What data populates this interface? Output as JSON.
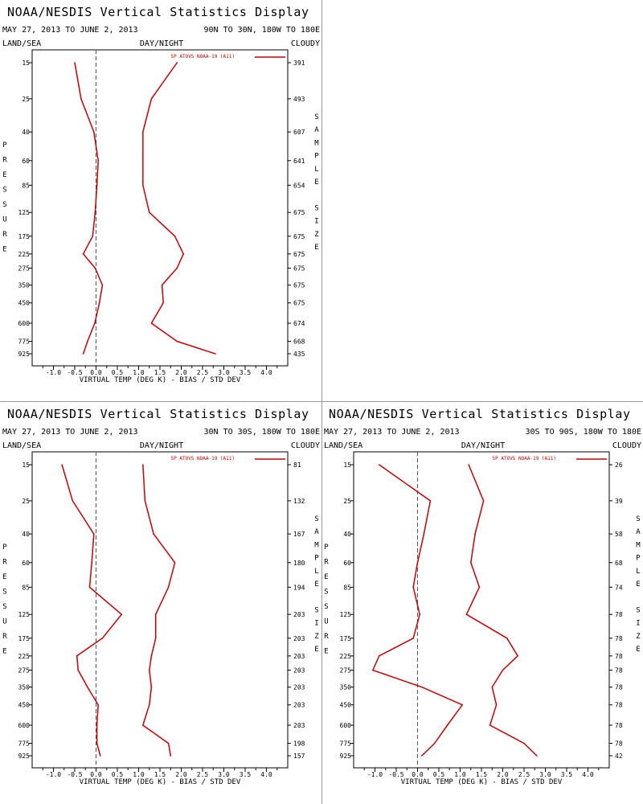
{
  "panel_title": "NOAA/NESDIS Vertical Statistics Display",
  "date_range": "MAY 27, 2013 TO JUNE 2, 2013",
  "label_left": "LAND/SEA",
  "label_center": "DAY/NIGHT",
  "label_right": "CLOUDY",
  "y_title_letters": [
    "P",
    "R",
    "E",
    "S",
    "S",
    "U",
    "R",
    "E"
  ],
  "right_title_letters": [
    "S",
    "A",
    "M",
    "P",
    "L",
    "E",
    "",
    "S",
    "I",
    "Z",
    "E"
  ],
  "colors": {
    "series": "#cc0000",
    "axis": "#000000",
    "zero_line": "#555555",
    "divider": "#999999"
  },
  "chart_data": [
    {
      "type": "line",
      "region": "90N TO 30N, 180W TO 180E",
      "legend": "SP ATOVS NOAA-19 (A11)",
      "xlabel": "VIRTUAL TEMP (DEG K) - BIAS / STD DEV",
      "xlim": [
        -1.5,
        4.5
      ],
      "xticks": [
        "-1.0",
        "-0.5",
        "0.0",
        "0.5",
        "1.0",
        "1.5",
        "2.0",
        "2.5",
        "3.0",
        "3.5",
        "4.0"
      ],
      "y_levels": [
        15,
        25,
        40,
        60,
        85,
        125,
        175,
        225,
        275,
        350,
        450,
        600,
        775,
        925
      ],
      "sample_size": [
        391,
        493,
        607,
        641,
        654,
        675,
        675,
        675,
        675,
        675,
        675,
        674,
        668,
        435
      ],
      "series": [
        {
          "stat": "bias",
          "values": [
            -0.5,
            -0.35,
            -0.05,
            0.05,
            0.02,
            -0.02,
            -0.08,
            -0.3,
            -0.02,
            0.15,
            0.08,
            -0.03,
            -0.2,
            -0.3
          ]
        },
        {
          "stat": "std_dev",
          "values": [
            1.9,
            1.3,
            1.1,
            1.1,
            1.1,
            1.25,
            1.85,
            2.05,
            1.9,
            1.55,
            1.58,
            1.3,
            1.9,
            2.8
          ]
        }
      ]
    },
    {
      "type": "line",
      "region": "30N TO 30S, 180W TO 180E",
      "legend": "SP ATOVS NOAA-19 (A11)",
      "xlabel": "VIRTUAL TEMP (DEG K) - BIAS / STD DEV",
      "xlim": [
        -1.5,
        4.5
      ],
      "xticks": [
        "-1.0",
        "-0.5",
        "0.0",
        "0.5",
        "1.0",
        "1.5",
        "2.0",
        "2.5",
        "3.0",
        "3.5",
        "4.0"
      ],
      "y_levels": [
        15,
        25,
        40,
        60,
        85,
        125,
        175,
        225,
        275,
        350,
        450,
        600,
        775,
        925
      ],
      "sample_size": [
        81,
        132,
        167,
        180,
        194,
        203,
        203,
        203,
        203,
        203,
        203,
        203,
        198,
        157
      ],
      "series": [
        {
          "stat": "bias",
          "values": [
            -0.8,
            -0.55,
            -0.05,
            -0.1,
            -0.15,
            0.6,
            0.15,
            -0.45,
            -0.42,
            -0.2,
            0.05,
            0.02,
            0.02,
            0.1
          ]
        },
        {
          "stat": "std_dev",
          "values": [
            1.1,
            1.15,
            1.35,
            1.85,
            1.7,
            1.4,
            1.4,
            1.3,
            1.25,
            1.3,
            1.25,
            1.1,
            1.7,
            1.75
          ]
        }
      ]
    },
    {
      "type": "line",
      "region": "30S TO 90S, 180W TO 180E",
      "legend": "SP ATOVS NOAA-19 (A11)",
      "xlabel": "VIRTUAL TEMP (DEG K) - BIAS / STD DEV",
      "xlim": [
        -1.5,
        4.5
      ],
      "xticks": [
        "-1.0",
        "-0.5",
        "0.0",
        "0.5",
        "1.0",
        "1.5",
        "2.0",
        "2.5",
        "3.0",
        "3.5",
        "4.0"
      ],
      "y_levels": [
        15,
        25,
        40,
        60,
        85,
        125,
        175,
        225,
        275,
        350,
        450,
        600,
        775,
        925
      ],
      "sample_size": [
        26,
        39,
        58,
        68,
        74,
        78,
        78,
        78,
        78,
        78,
        78,
        78,
        78,
        42
      ],
      "series": [
        {
          "stat": "bias",
          "values": [
            -0.9,
            0.3,
            0.15,
            0.0,
            -0.1,
            0.05,
            -0.1,
            -0.9,
            -1.05,
            0.1,
            1.05,
            0.7,
            0.4,
            0.1
          ]
        },
        {
          "stat": "std_dev",
          "values": [
            1.2,
            1.55,
            1.35,
            1.25,
            1.45,
            1.15,
            2.1,
            2.35,
            2.0,
            1.75,
            1.85,
            1.7,
            2.5,
            2.8
          ]
        }
      ]
    }
  ]
}
